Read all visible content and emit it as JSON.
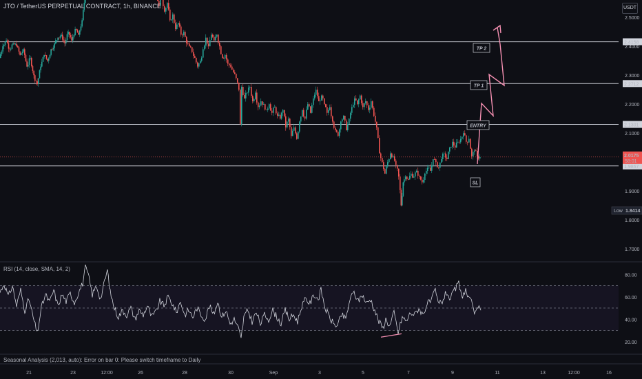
{
  "header": {
    "symbol_title": "JTO / TetherUS PERPETUAL CONTRACT, 1h, BINANCE",
    "currency_button": "USDT"
  },
  "rsi_panel": {
    "label": "RSI (14, close, SMA, 14, 2)",
    "ticks": [
      "80.00",
      "60.00",
      "40.00",
      "20.00"
    ],
    "tick_values": [
      80,
      60,
      40,
      20
    ],
    "upper_band": 70,
    "middle_band": 50,
    "lower_band": 30
  },
  "status": {
    "seasonal_error": "Seasonal Analysis (2,013, auto): Error on bar 0: Please switch timeframe to Daily"
  },
  "time_axis": {
    "labels": [
      "21",
      "23",
      "12:00",
      "26",
      "28",
      "30",
      "Sep",
      "3",
      "5",
      "7",
      "9",
      "11",
      "13",
      "12:00",
      "16"
    ]
  },
  "chart_data": {
    "type": "candlestick",
    "symbol": "JTO / TetherUS PERPETUAL CONTRACT",
    "interval": "1h",
    "exchange": "BINANCE",
    "currency": "USDT",
    "price_ticks": [
      "2.5000",
      "2.4000",
      "2.3000",
      "2.2000",
      "2.1000",
      "2.0000",
      "1.9000",
      "1.8000",
      "1.7000"
    ],
    "price_tick_values": [
      2.5,
      2.4,
      2.3,
      2.2,
      2.1,
      2.0,
      1.9,
      1.8,
      1.7
    ],
    "y_range": [
      1.66,
      2.56
    ],
    "last_price": "2.0175",
    "countdown": "58:01",
    "low": {
      "label": "Low",
      "value": "1.8414"
    },
    "levels": [
      {
        "name": "TP 2",
        "value": 2.4158,
        "label": "2.4158"
      },
      {
        "name": "TP 1",
        "value": 2.2712,
        "label": "2.2712"
      },
      {
        "name": "ENTRY",
        "value": 2.1301,
        "label": "2.1301"
      },
      {
        "name": "SL",
        "value": 1.9867,
        "label": "1.9867"
      }
    ],
    "colors": {
      "up": "#26a69a",
      "down": "#ef5350",
      "plan_arrow": "#f48fb1",
      "level_line": "#c5c8d0",
      "rsi_line": "#d1d4dc",
      "rsi_band": "#7e57c2"
    },
    "price_path": [
      [
        0,
        2.36
      ],
      [
        5,
        2.4
      ],
      [
        10,
        2.42
      ],
      [
        15,
        2.39
      ],
      [
        20,
        2.41
      ],
      [
        25,
        2.4
      ],
      [
        30,
        2.37
      ],
      [
        35,
        2.39
      ],
      [
        40,
        2.33
      ],
      [
        45,
        2.36
      ],
      [
        50,
        2.3
      ],
      [
        55,
        2.27
      ],
      [
        60,
        2.33
      ],
      [
        65,
        2.37
      ],
      [
        70,
        2.35
      ],
      [
        75,
        2.39
      ],
      [
        80,
        2.41
      ],
      [
        85,
        2.43
      ],
      [
        90,
        2.44
      ],
      [
        95,
        2.41
      ],
      [
        100,
        2.45
      ],
      [
        105,
        2.42
      ],
      [
        110,
        2.46
      ],
      [
        115,
        2.44
      ],
      [
        120,
        2.49
      ],
      [
        123,
        2.55
      ],
      [
        126,
        2.6
      ],
      [
        228,
        2.58
      ],
      [
        232,
        2.54
      ],
      [
        236,
        2.57
      ],
      [
        240,
        2.52
      ],
      [
        244,
        2.55
      ],
      [
        248,
        2.49
      ],
      [
        252,
        2.51
      ],
      [
        256,
        2.46
      ],
      [
        260,
        2.48
      ],
      [
        264,
        2.44
      ],
      [
        268,
        2.45
      ],
      [
        272,
        2.41
      ],
      [
        276,
        2.4
      ],
      [
        280,
        2.38
      ],
      [
        284,
        2.36
      ],
      [
        288,
        2.33
      ],
      [
        292,
        2.35
      ],
      [
        296,
        2.39
      ],
      [
        300,
        2.43
      ],
      [
        304,
        2.4
      ],
      [
        308,
        2.44
      ],
      [
        312,
        2.42
      ],
      [
        316,
        2.44
      ],
      [
        320,
        2.4
      ],
      [
        324,
        2.36
      ],
      [
        328,
        2.37
      ],
      [
        332,
        2.34
      ],
      [
        336,
        2.33
      ],
      [
        340,
        2.31
      ],
      [
        344,
        2.29
      ],
      [
        348,
        2.25
      ],
      [
        350,
        2.13
      ],
      [
        352,
        2.26
      ],
      [
        356,
        2.22
      ],
      [
        360,
        2.24
      ],
      [
        364,
        2.26
      ],
      [
        368,
        2.21
      ],
      [
        372,
        2.24
      ],
      [
        376,
        2.19
      ],
      [
        380,
        2.21
      ],
      [
        384,
        2.2
      ],
      [
        388,
        2.18
      ],
      [
        392,
        2.2
      ],
      [
        396,
        2.17
      ],
      [
        400,
        2.19
      ],
      [
        404,
        2.16
      ],
      [
        408,
        2.15
      ],
      [
        412,
        2.18
      ],
      [
        416,
        2.12
      ],
      [
        420,
        2.15
      ],
      [
        424,
        2.09
      ],
      [
        428,
        2.12
      ],
      [
        432,
        2.08
      ],
      [
        436,
        2.14
      ],
      [
        440,
        2.18
      ],
      [
        444,
        2.15
      ],
      [
        448,
        2.2
      ],
      [
        452,
        2.17
      ],
      [
        456,
        2.22
      ],
      [
        460,
        2.25
      ],
      [
        464,
        2.21
      ],
      [
        468,
        2.23
      ],
      [
        472,
        2.2
      ],
      [
        476,
        2.17
      ],
      [
        480,
        2.19
      ],
      [
        484,
        2.14
      ],
      [
        488,
        2.11
      ],
      [
        492,
        2.09
      ],
      [
        496,
        2.14
      ],
      [
        500,
        2.16
      ],
      [
        504,
        2.11
      ],
      [
        508,
        2.15
      ],
      [
        512,
        2.19
      ],
      [
        516,
        2.22
      ],
      [
        520,
        2.2
      ],
      [
        524,
        2.23
      ],
      [
        528,
        2.19
      ],
      [
        532,
        2.21
      ],
      [
        536,
        2.18
      ],
      [
        540,
        2.21
      ],
      [
        544,
        2.16
      ],
      [
        548,
        2.12
      ],
      [
        552,
        2.03
      ],
      [
        556,
        2.0
      ],
      [
        560,
        1.96
      ],
      [
        564,
        2.0
      ],
      [
        568,
        2.03
      ],
      [
        572,
        2.02
      ],
      [
        576,
        1.99
      ],
      [
        580,
        1.95
      ],
      [
        583,
        1.85
      ],
      [
        586,
        1.93
      ],
      [
        590,
        1.95
      ],
      [
        594,
        1.94
      ],
      [
        598,
        1.96
      ],
      [
        602,
        1.95
      ],
      [
        606,
        1.97
      ],
      [
        610,
        1.95
      ],
      [
        614,
        1.93
      ],
      [
        618,
        1.96
      ],
      [
        622,
        1.98
      ],
      [
        626,
        1.97
      ],
      [
        630,
        2.01
      ],
      [
        634,
        2.0
      ],
      [
        638,
        1.98
      ],
      [
        642,
        2.01
      ],
      [
        646,
        2.03
      ],
      [
        650,
        2.01
      ],
      [
        654,
        2.05
      ],
      [
        658,
        2.07
      ],
      [
        662,
        2.05
      ],
      [
        666,
        2.07
      ],
      [
        670,
        2.08
      ],
      [
        674,
        2.1
      ],
      [
        678,
        2.07
      ],
      [
        682,
        2.08
      ],
      [
        686,
        2.02
      ],
      [
        690,
        2.04
      ],
      [
        694,
        2.02
      ],
      [
        698,
        2.0175
      ]
    ],
    "rsi_path": [
      [
        0,
        64
      ],
      [
        6,
        72
      ],
      [
        12,
        60
      ],
      [
        18,
        70
      ],
      [
        24,
        52
      ],
      [
        30,
        66
      ],
      [
        36,
        48
      ],
      [
        42,
        58
      ],
      [
        48,
        42
      ],
      [
        54,
        27
      ],
      [
        60,
        50
      ],
      [
        66,
        62
      ],
      [
        72,
        55
      ],
      [
        78,
        66
      ],
      [
        84,
        52
      ],
      [
        90,
        62
      ],
      [
        96,
        56
      ],
      [
        102,
        63
      ],
      [
        108,
        55
      ],
      [
        114,
        64
      ],
      [
        120,
        72
      ],
      [
        124,
        86
      ],
      [
        128,
        80
      ],
      [
        134,
        62
      ],
      [
        140,
        70
      ],
      [
        146,
        58
      ],
      [
        152,
        74
      ],
      [
        156,
        84
      ],
      [
        160,
        64
      ],
      [
        166,
        50
      ],
      [
        172,
        42
      ],
      [
        178,
        48
      ],
      [
        184,
        44
      ],
      [
        190,
        50
      ],
      [
        196,
        40
      ],
      [
        202,
        48
      ],
      [
        208,
        44
      ],
      [
        214,
        52
      ],
      [
        220,
        42
      ],
      [
        226,
        46
      ],
      [
        232,
        56
      ],
      [
        238,
        52
      ],
      [
        244,
        60
      ],
      [
        250,
        54
      ],
      [
        256,
        46
      ],
      [
        262,
        56
      ],
      [
        268,
        44
      ],
      [
        274,
        48
      ],
      [
        280,
        42
      ],
      [
        286,
        50
      ],
      [
        292,
        44
      ],
      [
        298,
        40
      ],
      [
        304,
        52
      ],
      [
        310,
        44
      ],
      [
        316,
        56
      ],
      [
        322,
        42
      ],
      [
        328,
        48
      ],
      [
        334,
        36
      ],
      [
        340,
        40
      ],
      [
        346,
        32
      ],
      [
        350,
        22
      ],
      [
        354,
        42
      ],
      [
        360,
        48
      ],
      [
        366,
        38
      ],
      [
        372,
        46
      ],
      [
        378,
        36
      ],
      [
        384,
        44
      ],
      [
        390,
        40
      ],
      [
        396,
        48
      ],
      [
        402,
        42
      ],
      [
        408,
        36
      ],
      [
        414,
        48
      ],
      [
        420,
        40
      ],
      [
        426,
        44
      ],
      [
        432,
        38
      ],
      [
        438,
        52
      ],
      [
        444,
        58
      ],
      [
        450,
        54
      ],
      [
        456,
        62
      ],
      [
        462,
        58
      ],
      [
        466,
        66
      ],
      [
        472,
        50
      ],
      [
        478,
        42
      ],
      [
        484,
        36
      ],
      [
        490,
        34
      ],
      [
        496,
        44
      ],
      [
        502,
        40
      ],
      [
        508,
        58
      ],
      [
        514,
        64
      ],
      [
        520,
        56
      ],
      [
        526,
        62
      ],
      [
        532,
        54
      ],
      [
        538,
        58
      ],
      [
        544,
        48
      ],
      [
        550,
        38
      ],
      [
        556,
        32
      ],
      [
        560,
        40
      ],
      [
        566,
        34
      ],
      [
        572,
        46
      ],
      [
        578,
        28
      ],
      [
        584,
        42
      ],
      [
        590,
        38
      ],
      [
        596,
        46
      ],
      [
        602,
        44
      ],
      [
        608,
        50
      ],
      [
        614,
        44
      ],
      [
        620,
        54
      ],
      [
        626,
        56
      ],
      [
        632,
        66
      ],
      [
        636,
        54
      ],
      [
        642,
        56
      ],
      [
        648,
        64
      ],
      [
        654,
        58
      ],
      [
        660,
        66
      ],
      [
        666,
        72
      ],
      [
        670,
        60
      ],
      [
        676,
        66
      ],
      [
        680,
        58
      ],
      [
        686,
        54
      ],
      [
        690,
        44
      ],
      [
        694,
        50
      ],
      [
        698,
        48
      ]
    ],
    "rsi_divergence": [
      [
        553,
        24
      ],
      [
        583,
        27
      ]
    ]
  }
}
